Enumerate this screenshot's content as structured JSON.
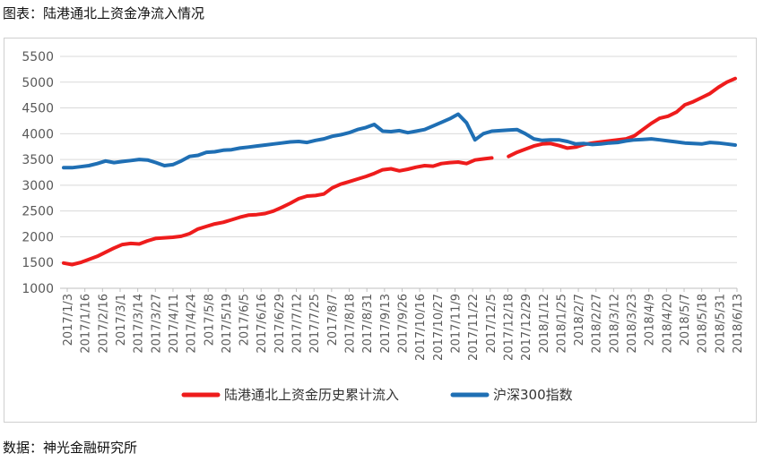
{
  "page": {
    "title": "图表：陆港通北上资金净流入情况",
    "source": "数据：神光金融研究所"
  },
  "chart_data": {
    "type": "line",
    "title": "",
    "xlabel": "",
    "ylabel": "",
    "ylim": [
      1000,
      5500
    ],
    "yticks": [
      1000,
      1500,
      2000,
      2500,
      3000,
      3500,
      4000,
      4500,
      5000,
      5500
    ],
    "grid": "horizontal",
    "legend_position": "bottom",
    "x_tick_labels": [
      "2017/1/3",
      "2017/1/16",
      "2017/2/16",
      "2017/3/1",
      "2017/3/14",
      "2017/3/27",
      "2017/4/11",
      "2017/4/24",
      "2017/5/8",
      "2017/5/19",
      "2017/6/5",
      "2017/6/16",
      "2017/6/29",
      "2017/7/12",
      "2017/7/25",
      "2017/8/7",
      "2017/8/18",
      "2017/8/31",
      "2017/9/13",
      "2017/9/26",
      "2017/10/16",
      "2017/10/27",
      "2017/11/9",
      "2017/11/22",
      "2017/12/5",
      "2017/12/18",
      "2017/12/29",
      "2018/1/12",
      "2018/1/25",
      "2018/2/7",
      "2018/2/27",
      "2018/3/12",
      "2018/3/23",
      "2018/4/9",
      "2018/4/20",
      "2018/5/7",
      "2018/5/18",
      "2018/5/31",
      "2018/6/13"
    ],
    "series": [
      {
        "name": "陆港通北上资金历史累计流入",
        "color": "#ee1c1c",
        "values": [
          1490,
          1460,
          1500,
          1560,
          1620,
          1700,
          1780,
          1850,
          1870,
          1860,
          1920,
          1970,
          1980,
          1990,
          2010,
          2060,
          2150,
          2200,
          2250,
          2280,
          2330,
          2380,
          2420,
          2430,
          2450,
          2500,
          2570,
          2650,
          2740,
          2790,
          2800,
          2830,
          2950,
          3020,
          3070,
          3120,
          3170,
          3230,
          3300,
          3320,
          3280,
          3310,
          3350,
          3380,
          3370,
          3420,
          3440,
          3450,
          3420,
          3490,
          3510,
          3530,
          null,
          3560,
          3640,
          3700,
          3760,
          3800,
          3810,
          3770,
          3720,
          3740,
          3790,
          3820,
          3840,
          3860,
          3880,
          3900,
          3960,
          4080,
          4200,
          4300,
          4340,
          4420,
          4560,
          4620,
          4700,
          4780,
          4900,
          5000,
          5070
        ]
      },
      {
        "name": "沪深300指数",
        "color": "#1f6fb4",
        "values": [
          3340,
          3340,
          3360,
          3380,
          3420,
          3470,
          3440,
          3460,
          3480,
          3500,
          3490,
          3440,
          3380,
          3400,
          3470,
          3560,
          3580,
          3640,
          3650,
          3680,
          3690,
          3720,
          3740,
          3760,
          3780,
          3800,
          3820,
          3840,
          3850,
          3830,
          3870,
          3900,
          3950,
          3980,
          4020,
          4080,
          4120,
          4180,
          4050,
          4040,
          4060,
          4020,
          4050,
          4080,
          4150,
          4220,
          4290,
          4380,
          4210,
          3880,
          4000,
          4050,
          4060,
          4070,
          4080,
          4000,
          3900,
          3870,
          3880,
          3880,
          3850,
          3800,
          3810,
          3790,
          3800,
          3820,
          3830,
          3860,
          3880,
          3890,
          3900,
          3880,
          3860,
          3840,
          3820,
          3810,
          3800,
          3830,
          3820,
          3800,
          3780
        ]
      }
    ]
  }
}
